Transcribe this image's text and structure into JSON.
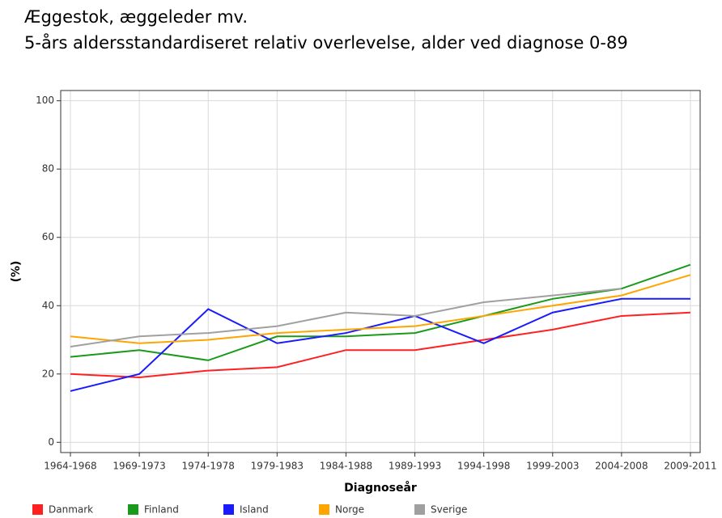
{
  "chart_data": {
    "type": "line",
    "title": "Æggestok, æggeleder mv.",
    "subtitle": "5-års aldersstandardiseret relativ overlevelse, alder ved diagnose 0-89",
    "x_label": "Diagnoseår",
    "y_label": "(%)",
    "categories": [
      "1964-1968",
      "1969-1973",
      "1974-1978",
      "1979-1983",
      "1984-1988",
      "1989-1993",
      "1994-1998",
      "1999-2003",
      "2004-2008",
      "2009-2011"
    ],
    "series": [
      {
        "name": "Danmark",
        "color": "#ff2020",
        "values": [
          20,
          19,
          21,
          22,
          27,
          27,
          30,
          33,
          37,
          38
        ]
      },
      {
        "name": "Finland",
        "color": "#1a9a1a",
        "values": [
          25,
          27,
          24,
          31,
          31,
          32,
          37,
          42,
          45,
          52
        ]
      },
      {
        "name": "Island",
        "color": "#1a1aff",
        "values": [
          15,
          20,
          39,
          29,
          32,
          37,
          29,
          38,
          42,
          42
        ]
      },
      {
        "name": "Norge",
        "color": "#ffa500",
        "values": [
          31,
          29,
          30,
          32,
          33,
          34,
          37,
          40,
          43,
          49
        ]
      },
      {
        "name": "Sverige",
        "color": "#a0a0a0",
        "values": [
          28,
          31,
          32,
          34,
          38,
          37,
          41,
          43,
          45,
          null
        ]
      }
    ],
    "ylim": [
      -3,
      103
    ],
    "yticks": [
      0,
      20,
      40,
      60,
      80,
      100
    ],
    "grid": true
  }
}
